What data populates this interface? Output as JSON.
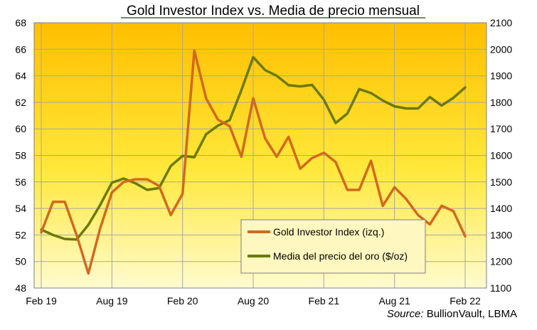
{
  "chart_data": {
    "type": "line",
    "title": "Gold Investor Index vs. Media de precio mensual",
    "source_label": "Source:",
    "source_value": " BullionVault, LBMA",
    "x_tick_labels": [
      "Feb 19",
      "Aug 19",
      "Feb 20",
      "Aug 20",
      "Feb 21",
      "Aug 21",
      "Feb 22"
    ],
    "x_tick_indices": [
      0,
      6,
      12,
      18,
      24,
      30,
      36
    ],
    "y_left": {
      "range": [
        48,
        68
      ],
      "ticks": [
        48,
        50,
        52,
        54,
        56,
        58,
        60,
        62,
        64,
        66,
        68
      ]
    },
    "y_right": {
      "range": [
        1100,
        2100
      ],
      "ticks": [
        1100,
        1200,
        1300,
        1400,
        1500,
        1600,
        1700,
        1800,
        1900,
        2000,
        2100
      ]
    },
    "grid": true,
    "legend_position": "bottom-right",
    "series": [
      {
        "name": "Gold Investor Index (izq.)",
        "axis": "left",
        "color": "#d2691e",
        "values": [
          52.2,
          54.5,
          54.5,
          52.0,
          49.1,
          52.5,
          55.2,
          56.0,
          56.2,
          56.2,
          55.7,
          53.5,
          55.1,
          65.9,
          62.3,
          60.7,
          60.2,
          57.9,
          62.3,
          59.3,
          57.9,
          59.4,
          57.0,
          57.8,
          58.2,
          57.5,
          55.4,
          55.4,
          57.6,
          54.2,
          55.6,
          54.7,
          53.5,
          52.8,
          54.2,
          53.8,
          51.9
        ]
      },
      {
        "name": "Media del precio del oro ($/oz)",
        "axis": "right",
        "color": "#6b7a00",
        "values": [
          1320,
          1300,
          1285,
          1283,
          1338,
          1413,
          1497,
          1513,
          1495,
          1470,
          1477,
          1560,
          1598,
          1593,
          1680,
          1712,
          1733,
          1846,
          1970,
          1922,
          1900,
          1865,
          1860,
          1866,
          1810,
          1722,
          1758,
          1850,
          1835,
          1807,
          1785,
          1777,
          1777,
          1820,
          1788,
          1817,
          1856
        ]
      }
    ]
  }
}
